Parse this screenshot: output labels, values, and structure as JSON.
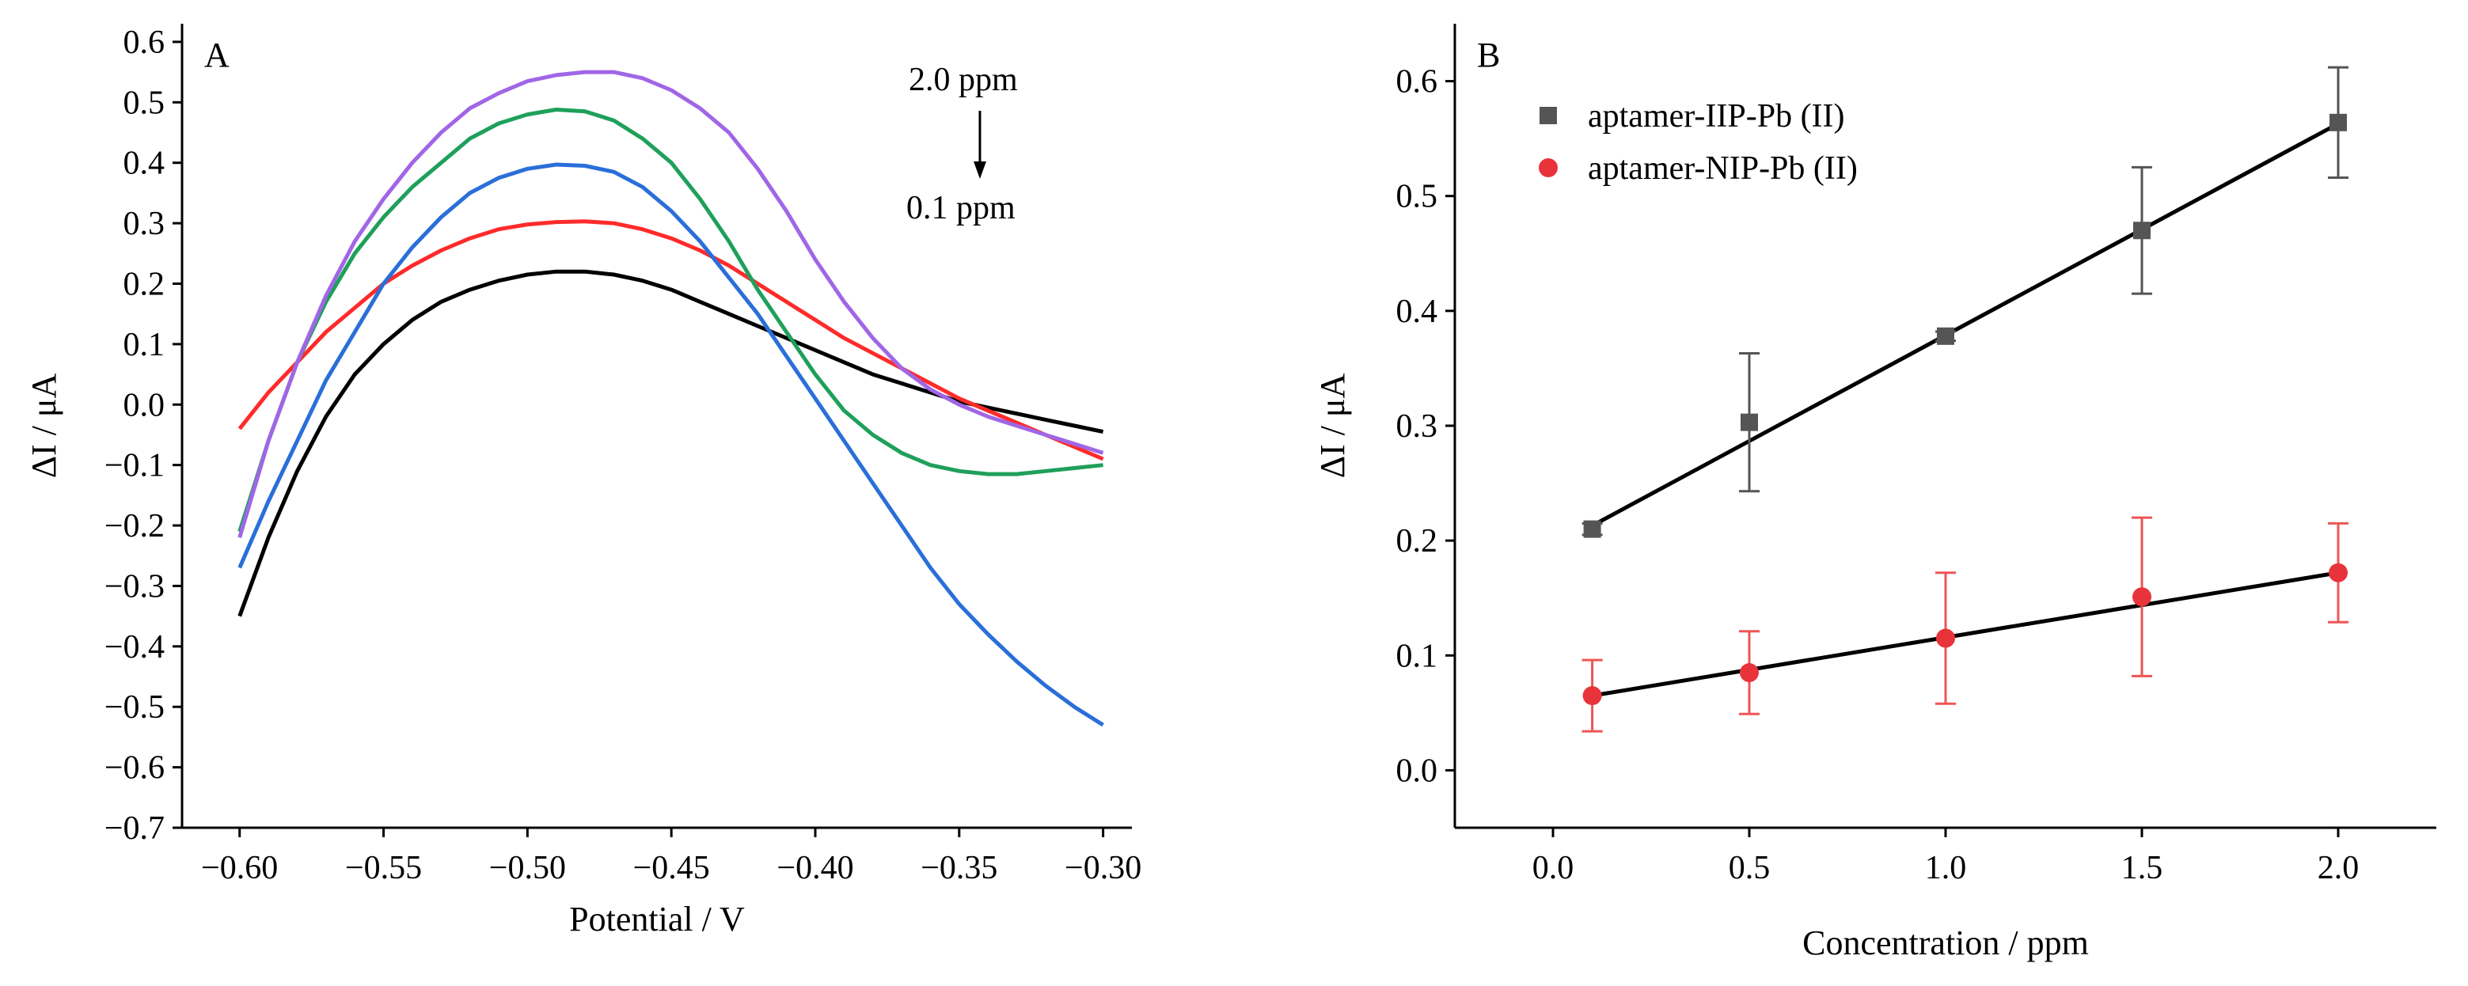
{
  "chart_data": [
    {
      "panel_label": "A",
      "type": "line",
      "xlabel": "Potential / V",
      "ylabel": "ΔI / μA",
      "xlim": [
        -0.62,
        -0.29
      ],
      "ylim": [
        -0.7,
        0.63
      ],
      "xticks": [
        -0.6,
        -0.55,
        -0.5,
        -0.45,
        -0.4,
        -0.35,
        -0.3
      ],
      "xtick_labels": [
        "−0.60",
        "−0.55",
        "−0.50",
        "−0.45",
        "−0.40",
        "−0.35",
        "−0.30"
      ],
      "yticks": [
        -0.7,
        -0.6,
        -0.5,
        -0.4,
        -0.3,
        -0.2,
        -0.1,
        0.0,
        0.1,
        0.2,
        0.3,
        0.4,
        0.5,
        0.6
      ],
      "ytick_labels": [
        "−0.7",
        "−0.6",
        "−0.5",
        "−0.4",
        "−0.3",
        "−0.2",
        "−0.1",
        "0.0",
        "0.1",
        "0.2",
        "0.3",
        "0.4",
        "0.5",
        "0.6"
      ],
      "annotations": {
        "top": "2.0 ppm",
        "bottom": "0.1 ppm"
      },
      "series": [
        {
          "color": "#000000",
          "points": [
            [
              -0.6,
              -0.35
            ],
            [
              -0.59,
              -0.22
            ],
            [
              -0.58,
              -0.11
            ],
            [
              -0.57,
              -0.02
            ],
            [
              -0.56,
              0.05
            ],
            [
              -0.55,
              0.1
            ],
            [
              -0.54,
              0.14
            ],
            [
              -0.53,
              0.17
            ],
            [
              -0.52,
              0.19
            ],
            [
              -0.51,
              0.205
            ],
            [
              -0.5,
              0.215
            ],
            [
              -0.49,
              0.22
            ],
            [
              -0.48,
              0.22
            ],
            [
              -0.47,
              0.215
            ],
            [
              -0.46,
              0.205
            ],
            [
              -0.45,
              0.19
            ],
            [
              -0.44,
              0.17
            ],
            [
              -0.43,
              0.15
            ],
            [
              -0.42,
              0.13
            ],
            [
              -0.41,
              0.11
            ],
            [
              -0.4,
              0.09
            ],
            [
              -0.39,
              0.07
            ],
            [
              -0.38,
              0.05
            ],
            [
              -0.37,
              0.035
            ],
            [
              -0.36,
              0.02
            ],
            [
              -0.35,
              0.005
            ],
            [
              -0.34,
              -0.005
            ],
            [
              -0.33,
              -0.015
            ],
            [
              -0.32,
              -0.025
            ],
            [
              -0.31,
              -0.035
            ],
            [
              -0.3,
              -0.045
            ]
          ]
        },
        {
          "color": "#ff2b2b",
          "points": [
            [
              -0.6,
              -0.04
            ],
            [
              -0.59,
              0.02
            ],
            [
              -0.58,
              0.07
            ],
            [
              -0.57,
              0.12
            ],
            [
              -0.56,
              0.16
            ],
            [
              -0.55,
              0.2
            ],
            [
              -0.54,
              0.23
            ],
            [
              -0.53,
              0.255
            ],
            [
              -0.52,
              0.275
            ],
            [
              -0.51,
              0.29
            ],
            [
              -0.5,
              0.298
            ],
            [
              -0.49,
              0.302
            ],
            [
              -0.48,
              0.303
            ],
            [
              -0.47,
              0.3
            ],
            [
              -0.46,
              0.29
            ],
            [
              -0.45,
              0.275
            ],
            [
              -0.44,
              0.255
            ],
            [
              -0.43,
              0.23
            ],
            [
              -0.42,
              0.2
            ],
            [
              -0.41,
              0.17
            ],
            [
              -0.4,
              0.14
            ],
            [
              -0.39,
              0.11
            ],
            [
              -0.38,
              0.085
            ],
            [
              -0.37,
              0.06
            ],
            [
              -0.36,
              0.035
            ],
            [
              -0.35,
              0.01
            ],
            [
              -0.34,
              -0.01
            ],
            [
              -0.33,
              -0.03
            ],
            [
              -0.32,
              -0.05
            ],
            [
              -0.31,
              -0.07
            ],
            [
              -0.3,
              -0.09
            ]
          ]
        },
        {
          "color": "#2a6fd8",
          "points": [
            [
              -0.6,
              -0.27
            ],
            [
              -0.59,
              -0.16
            ],
            [
              -0.58,
              -0.06
            ],
            [
              -0.57,
              0.04
            ],
            [
              -0.56,
              0.12
            ],
            [
              -0.55,
              0.2
            ],
            [
              -0.54,
              0.26
            ],
            [
              -0.53,
              0.31
            ],
            [
              -0.52,
              0.35
            ],
            [
              -0.51,
              0.375
            ],
            [
              -0.5,
              0.39
            ],
            [
              -0.49,
              0.397
            ],
            [
              -0.48,
              0.395
            ],
            [
              -0.47,
              0.385
            ],
            [
              -0.46,
              0.36
            ],
            [
              -0.45,
              0.32
            ],
            [
              -0.44,
              0.27
            ],
            [
              -0.43,
              0.21
            ],
            [
              -0.42,
              0.15
            ],
            [
              -0.41,
              0.08
            ],
            [
              -0.4,
              0.01
            ],
            [
              -0.39,
              -0.06
            ],
            [
              -0.38,
              -0.13
            ],
            [
              -0.37,
              -0.2
            ],
            [
              -0.36,
              -0.27
            ],
            [
              -0.35,
              -0.33
            ],
            [
              -0.34,
              -0.38
            ],
            [
              -0.33,
              -0.425
            ],
            [
              -0.32,
              -0.465
            ],
            [
              -0.31,
              -0.5
            ],
            [
              -0.3,
              -0.53
            ]
          ]
        },
        {
          "color": "#1ea05a",
          "points": [
            [
              -0.6,
              -0.21
            ],
            [
              -0.59,
              -0.06
            ],
            [
              -0.58,
              0.07
            ],
            [
              -0.57,
              0.17
            ],
            [
              -0.56,
              0.25
            ],
            [
              -0.55,
              0.31
            ],
            [
              -0.54,
              0.36
            ],
            [
              -0.53,
              0.4
            ],
            [
              -0.52,
              0.44
            ],
            [
              -0.51,
              0.465
            ],
            [
              -0.5,
              0.48
            ],
            [
              -0.49,
              0.488
            ],
            [
              -0.48,
              0.485
            ],
            [
              -0.47,
              0.47
            ],
            [
              -0.46,
              0.44
            ],
            [
              -0.45,
              0.4
            ],
            [
              -0.44,
              0.34
            ],
            [
              -0.43,
              0.27
            ],
            [
              -0.42,
              0.19
            ],
            [
              -0.41,
              0.12
            ],
            [
              -0.4,
              0.05
            ],
            [
              -0.39,
              -0.01
            ],
            [
              -0.38,
              -0.05
            ],
            [
              -0.37,
              -0.08
            ],
            [
              -0.36,
              -0.1
            ],
            [
              -0.35,
              -0.11
            ],
            [
              -0.34,
              -0.115
            ],
            [
              -0.33,
              -0.115
            ],
            [
              -0.32,
              -0.11
            ],
            [
              -0.31,
              -0.105
            ],
            [
              -0.3,
              -0.1
            ]
          ]
        },
        {
          "color": "#a066e6",
          "points": [
            [
              -0.6,
              -0.22
            ],
            [
              -0.59,
              -0.06
            ],
            [
              -0.58,
              0.07
            ],
            [
              -0.57,
              0.18
            ],
            [
              -0.56,
              0.27
            ],
            [
              -0.55,
              0.34
            ],
            [
              -0.54,
              0.4
            ],
            [
              -0.53,
              0.45
            ],
            [
              -0.52,
              0.49
            ],
            [
              -0.51,
              0.515
            ],
            [
              -0.5,
              0.535
            ],
            [
              -0.49,
              0.545
            ],
            [
              -0.48,
              0.55
            ],
            [
              -0.47,
              0.55
            ],
            [
              -0.46,
              0.54
            ],
            [
              -0.45,
              0.52
            ],
            [
              -0.44,
              0.49
            ],
            [
              -0.43,
              0.45
            ],
            [
              -0.42,
              0.39
            ],
            [
              -0.41,
              0.32
            ],
            [
              -0.4,
              0.24
            ],
            [
              -0.39,
              0.17
            ],
            [
              -0.38,
              0.11
            ],
            [
              -0.37,
              0.06
            ],
            [
              -0.36,
              0.025
            ],
            [
              -0.35,
              0.0
            ],
            [
              -0.34,
              -0.02
            ],
            [
              -0.33,
              -0.035
            ],
            [
              -0.32,
              -0.05
            ],
            [
              -0.31,
              -0.065
            ],
            [
              -0.3,
              -0.08
            ]
          ]
        }
      ]
    },
    {
      "panel_label": "B",
      "type": "scatter",
      "xlabel": "Concentration / ppm",
      "ylabel": "ΔI / μA",
      "xlim": [
        -0.25,
        2.25
      ],
      "ylim": [
        -0.05,
        0.65
      ],
      "xticks": [
        0.0,
        0.5,
        1.0,
        1.5,
        2.0
      ],
      "xtick_labels": [
        "0.0",
        "0.5",
        "1.0",
        "1.5",
        "2.0"
      ],
      "yticks": [
        0.0,
        0.1,
        0.2,
        0.3,
        0.4,
        0.5,
        0.6
      ],
      "ytick_labels": [
        "0.0",
        "0.1",
        "0.2",
        "0.3",
        "0.4",
        "0.5",
        "0.6"
      ],
      "legend_position": "top-left",
      "series": [
        {
          "name": "aptamer-IIP-Pb (II)",
          "color": "#555555",
          "marker": "square",
          "error_color": "#555555",
          "x": [
            0.1,
            0.5,
            1.0,
            1.5,
            2.0
          ],
          "y": [
            0.21,
            0.303,
            0.378,
            0.47,
            0.564
          ],
          "err": [
            0.005,
            0.06,
            0.004,
            0.055,
            0.048
          ],
          "fit": [
            [
              0.1,
              0.213
            ],
            [
              2.0,
              0.563
            ]
          ]
        },
        {
          "name": "aptamer-NIP-Pb (II)",
          "color": "#e8333b",
          "marker": "circle",
          "error_color": "#ee5555",
          "x": [
            0.1,
            0.5,
            1.0,
            1.5,
            2.0
          ],
          "y": [
            0.065,
            0.085,
            0.115,
            0.151,
            0.172
          ],
          "err": [
            0.031,
            0.036,
            0.057,
            0.069,
            0.043
          ],
          "fit": [
            [
              0.1,
              0.065
            ],
            [
              2.0,
              0.172
            ]
          ]
        }
      ]
    }
  ]
}
